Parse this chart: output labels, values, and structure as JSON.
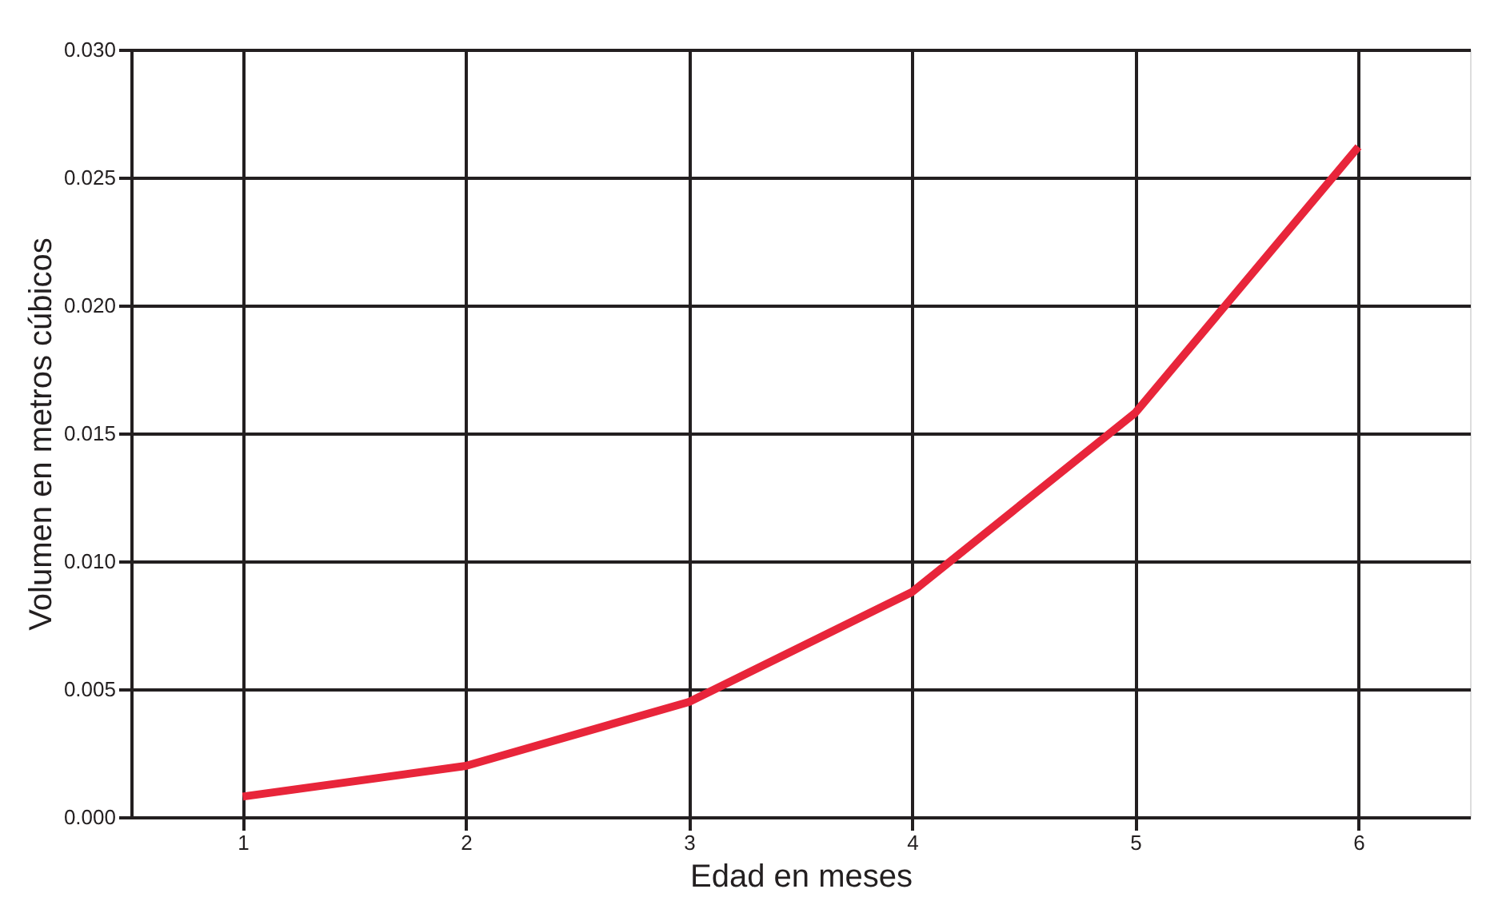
{
  "chart_data": {
    "type": "line",
    "xlabel": "Edad en meses",
    "ylabel": "Volumen en metros cúbicos",
    "categories": [
      "1",
      "2",
      "3",
      "4",
      "5",
      "6"
    ],
    "series": [
      {
        "color": "#e8253a",
        "values": [
          0.0008,
          0.002,
          0.0045,
          0.0088,
          0.0158,
          0.0262
        ]
      }
    ],
    "ylim": [
      0,
      0.03
    ],
    "yticks": [
      {
        "value": 0,
        "label": "0.000"
      },
      {
        "value": 0.005,
        "label": "0.005"
      },
      {
        "value": 0.01,
        "label": "0.010"
      },
      {
        "value": 0.015,
        "label": "0.015"
      },
      {
        "value": 0.02,
        "label": "0.020"
      },
      {
        "value": 0.025,
        "label": "0.025"
      },
      {
        "value": 0.03,
        "label": "0.030"
      }
    ],
    "grid": true,
    "marker": "none",
    "line_style": "solid"
  }
}
